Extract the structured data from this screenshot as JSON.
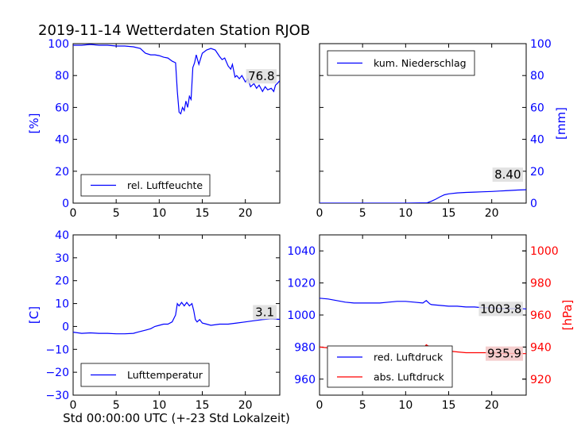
{
  "title": "2019-11-14 Wetterdaten Station RJOB",
  "xlabel": "Std 00:00:00 UTC (+-23 Std Lokalzeit)",
  "colors": {
    "blue": "#0000ff",
    "red": "#ff0000",
    "axis": "#000000",
    "label_box": "#dddddd",
    "label_box_red": "#f3c6c6"
  },
  "chart_data": [
    {
      "id": "humidity",
      "type": "line",
      "xlim": [
        0,
        24
      ],
      "ylim": [
        0,
        100
      ],
      "xticks": [
        0,
        5,
        10,
        15,
        20
      ],
      "yticks": [
        0,
        20,
        40,
        60,
        80,
        100
      ],
      "ytick_side": "left",
      "ylabel": "[%]",
      "legend_placement": "lower-left",
      "last_value_label": "76.8",
      "series": [
        {
          "name": "rel. Luftfeuchte",
          "color": "#0000ff",
          "x": [
            0,
            1,
            2,
            3,
            4,
            5,
            6,
            7,
            7.8,
            8.4,
            9,
            9.5,
            10,
            10.5,
            11,
            11.5,
            11.9,
            12.1,
            12.3,
            12.5,
            12.7,
            12.9,
            13.1,
            13.3,
            13.5,
            13.7,
            13.9,
            14.1,
            14.3,
            14.6,
            15,
            15.5,
            16,
            16.5,
            17,
            17.3,
            17.6,
            18,
            18.3,
            18.5,
            18.8,
            19,
            19.3,
            19.6,
            20,
            20.3,
            20.6,
            21,
            21.3,
            21.6,
            22,
            22.3,
            22.6,
            23,
            23.3,
            23.5,
            23.7,
            24
          ],
          "y": [
            99,
            99,
            99.5,
            99,
            99,
            98.5,
            98.5,
            98,
            97,
            94,
            93,
            93,
            92.5,
            91.5,
            91,
            89,
            88,
            70,
            57,
            56,
            60,
            58,
            64,
            60,
            67,
            65,
            85,
            88,
            93,
            87,
            94,
            96,
            97,
            96,
            92,
            90,
            91,
            86,
            84,
            87,
            79,
            80,
            78,
            80,
            76,
            78,
            73,
            75,
            72,
            74,
            70,
            73,
            71,
            72,
            70,
            74,
            75,
            76.8
          ]
        }
      ]
    },
    {
      "id": "precip",
      "type": "line",
      "xlim": [
        0,
        24
      ],
      "ylim": [
        0,
        100
      ],
      "xticks": [
        0,
        5,
        10,
        15,
        20
      ],
      "yticks": [
        0,
        20,
        40,
        60,
        80,
        100
      ],
      "ytick_side": "right",
      "ylabel": "[mm]",
      "legend_placement": "upper-left",
      "last_value_label": "8.40",
      "series": [
        {
          "name": "kum. Niederschlag",
          "color": "#0000ff",
          "x": [
            0,
            5,
            10,
            12.5,
            13,
            13.5,
            14,
            14.5,
            15,
            16,
            17,
            18,
            19,
            20,
            21,
            22,
            23,
            24
          ],
          "y": [
            0,
            0,
            0,
            0.2,
            1.2,
            2.5,
            4,
            5.2,
            5.8,
            6.4,
            6.7,
            6.9,
            7.1,
            7.3,
            7.6,
            7.9,
            8.2,
            8.4
          ]
        }
      ]
    },
    {
      "id": "temperature",
      "type": "line",
      "xlim": [
        0,
        24
      ],
      "ylim": [
        -30,
        40
      ],
      "xticks": [
        0,
        5,
        10,
        15,
        20
      ],
      "yticks": [
        -30,
        -20,
        -10,
        0,
        10,
        20,
        30,
        40
      ],
      "ytick_side": "left",
      "ylabel": "[C]",
      "legend_placement": "lower-left",
      "last_value_label": "3.1",
      "series": [
        {
          "name": "Lufttemperatur",
          "color": "#0000ff",
          "x": [
            0,
            1,
            2,
            3,
            4,
            5,
            6,
            7,
            7.5,
            8,
            8.5,
            9,
            9.5,
            10,
            10.5,
            11,
            11.5,
            11.9,
            12.1,
            12.3,
            12.6,
            12.9,
            13.2,
            13.5,
            13.8,
            14,
            14.2,
            14.4,
            14.7,
            15,
            15.5,
            16,
            17,
            18,
            19,
            20,
            21,
            22,
            23,
            24
          ],
          "y": [
            -2.5,
            -3,
            -2.8,
            -3,
            -3,
            -3.2,
            -3.2,
            -3,
            -2.5,
            -2,
            -1.5,
            -1,
            0,
            0.5,
            1,
            1,
            2,
            5,
            10,
            9,
            10.5,
            9,
            10.5,
            9,
            10,
            7,
            3,
            2,
            3,
            1.5,
            1,
            0.5,
            1,
            1,
            1.5,
            2,
            2.5,
            3,
            3.3,
            3.1
          ]
        }
      ]
    },
    {
      "id": "pressure",
      "type": "line",
      "xlim": [
        0,
        24
      ],
      "ylim": [
        950,
        1050
      ],
      "ylim_right": [
        910,
        1010
      ],
      "xticks": [
        0,
        5,
        10,
        15,
        20
      ],
      "yticks": [
        960,
        980,
        1000,
        1020,
        1040
      ],
      "yticks_right": [
        920,
        940,
        960,
        980,
        1000
      ],
      "ytick_side": "both",
      "ylabel_right": "[hPa]",
      "legend_placement": "lower-left",
      "series": [
        {
          "name": "red. Luftdruck",
          "color": "#0000ff",
          "axis": "left",
          "last_value_label": "1003.8",
          "x": [
            0,
            1,
            2,
            3,
            4,
            5,
            6,
            7,
            8,
            9,
            10,
            11,
            12,
            12.4,
            12.8,
            13,
            14,
            15,
            16,
            17,
            18,
            19,
            20,
            21,
            22,
            23,
            24
          ],
          "y": [
            1010.5,
            1010,
            1009,
            1008,
            1007.5,
            1007.5,
            1007.5,
            1007.5,
            1008,
            1008.5,
            1008.5,
            1008,
            1007.5,
            1009,
            1007,
            1006.5,
            1006,
            1005.5,
            1005.5,
            1005,
            1005,
            1004.5,
            1004.5,
            1004,
            1004,
            1004,
            1003.8
          ]
        },
        {
          "name": "abs. Luftdruck",
          "color": "#ff0000",
          "axis": "right",
          "last_value_label": "935.9",
          "x": [
            0,
            1,
            2,
            3,
            4,
            5,
            6,
            7,
            8,
            9,
            10,
            11,
            12,
            12.4,
            12.8,
            13,
            14,
            15,
            16,
            17,
            18,
            19,
            20,
            21,
            22,
            23,
            24
          ],
          "y": [
            940,
            939.5,
            938.5,
            937.5,
            937.5,
            937,
            937.5,
            937.5,
            938,
            938.5,
            939,
            939,
            938.5,
            941.5,
            940,
            939.5,
            938.5,
            937.5,
            937,
            936.5,
            936.5,
            936.5,
            936.5,
            936,
            936,
            936,
            935.9
          ]
        }
      ]
    }
  ]
}
